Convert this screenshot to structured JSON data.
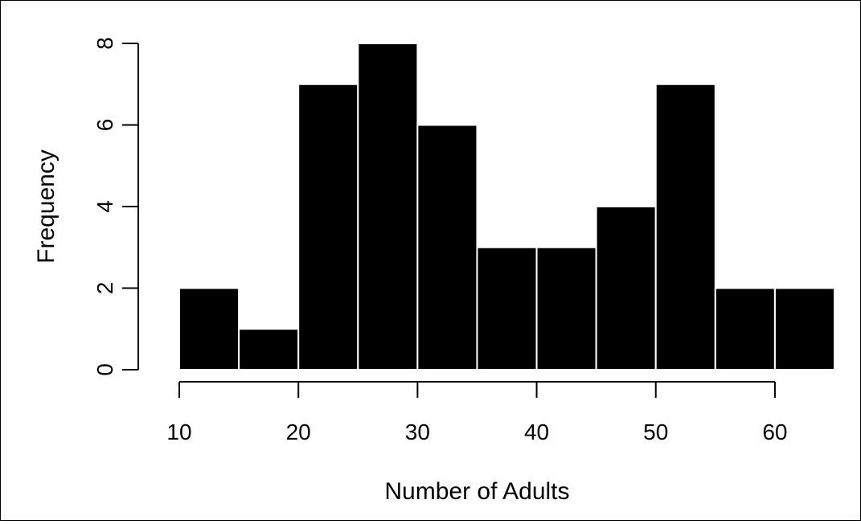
{
  "chart_data": {
    "type": "bar",
    "title": "",
    "xlabel": "Number of Adults",
    "ylabel": "Frequency",
    "bins": [
      {
        "start": 10,
        "end": 15,
        "count": 2
      },
      {
        "start": 15,
        "end": 20,
        "count": 1
      },
      {
        "start": 20,
        "end": 25,
        "count": 7
      },
      {
        "start": 25,
        "end": 30,
        "count": 8
      },
      {
        "start": 30,
        "end": 35,
        "count": 6
      },
      {
        "start": 35,
        "end": 40,
        "count": 3
      },
      {
        "start": 40,
        "end": 45,
        "count": 3
      },
      {
        "start": 45,
        "end": 50,
        "count": 4
      },
      {
        "start": 50,
        "end": 55,
        "count": 7
      },
      {
        "start": 55,
        "end": 60,
        "count": 2
      },
      {
        "start": 60,
        "end": 65,
        "count": 2
      }
    ],
    "xticks": [
      10,
      20,
      30,
      40,
      50,
      60
    ],
    "yticks": [
      0,
      2,
      4,
      6,
      8
    ],
    "xlim": [
      10,
      65
    ],
    "ylim": [
      0,
      8
    ],
    "grid": false,
    "bar_color": "#000000",
    "bar_border_color": "#ffffff"
  }
}
